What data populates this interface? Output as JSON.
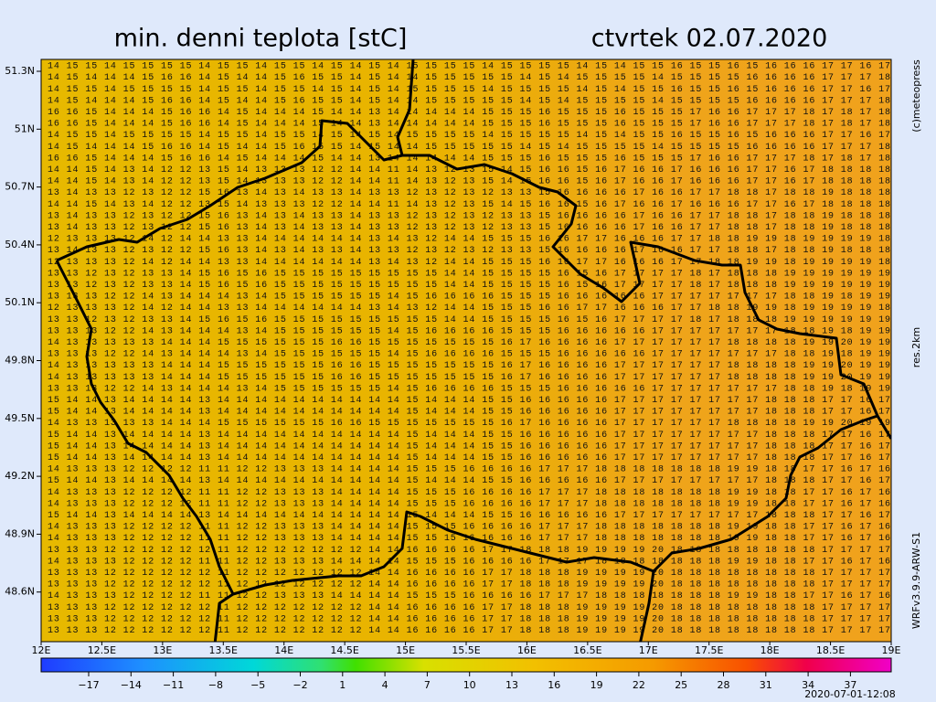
{
  "header": {
    "title": "min. denni teplota [stC]",
    "date": "ctvrtek 02.07.2020"
  },
  "side": {
    "copyright": "(c)meteopress",
    "resolution": "res.2km",
    "model": "WRFv3.9.9-ARW-S1"
  },
  "footer": {
    "timestamp": "2020-07-01-12:08"
  },
  "map": {
    "lat_labels": [
      "51.3N",
      "51N",
      "50.7N",
      "50.4N",
      "50.1N",
      "49.8N",
      "49.5N",
      "49.2N",
      "48.9N",
      "48.6N"
    ],
    "lon_labels": [
      "12E",
      "12.5E",
      "13E",
      "13.5E",
      "14E",
      "14.5E",
      "15E",
      "15.5E",
      "16E",
      "16.5E",
      "17E",
      "17.5E",
      "18E",
      "18.5E",
      "19E"
    ],
    "grid_rows": [
      "14 15 15 14 15 15 15 15 14 15 15 14 15 15 14 15 14 15 14 15 15 15 15 14 15 15 15 15 14 15 14 15 15 16 15 15 16 15 16 16 16 17 17 16 17",
      "14 15 14 14 14 15 16 16 14 15 14 14 15 16 15 15 14 15 14 14 15 15 15 15 15 14 15 14 15 15 15 15 14 15 15 15 15 16 16 16 16 17 17 17 18",
      "14 15 15 14 15 15 15 15 14 15 15 14 15 15 14 15 14 15 14 15 15 15 15 14 15 15 15 15 14 15 14 15 15 16 15 15 16 15 16 16 16 17 17 16 17",
      "14 15 14 14 14 15 16 16 14 15 14 14 15 16 15 15 14 15 14 14 15 15 15 15 15 14 15 14 15 15 15 15 14 15 15 15 15 16 16 16 16 17 17 17 18",
      "16 16 15 14 14 14 15 16 16 14 15 14 14 14 15 14 14 13 14 14 14 14 14 15 15 15 16 15 15 15 16 15 15 15 17 16 16 17 17 17 18 17 18 17 18",
      "16 16 15 14 14 14 15 16 16 14 15 14 14 14 15 14 14 13 14 14 14 14 14 15 15 15 16 15 15 15 16 15 15 15 17 16 16 17 17 17 18 17 18 17 18",
      "14 15 15 14 15 15 15 15 14 15 15 14 15 15 14 15 14 15 14 15 15 15 15 14 15 15 15 15 14 15 14 15 15 16 15 15 16 15 16 16 16 17 17 16 17",
      "14 15 14 14 14 15 16 16 14 15 14 14 15 16 15 15 14 15 14 14 15 15 15 15 15 14 15 14 15 15 15 15 14 15 15 15 15 16 16 16 16 17 17 17 18",
      "16 16 15 14 14 14 15 16 16 14 15 14 14 14 15 14 14 13 14 14 14 14 14 15 15 15 16 15 15 15 16 15 15 15 17 16 16 17 17 17 18 17 18 17 18",
      "14 14 15 14 13 14 12 12 13 15 14 13 13 13 12 12 14 14 11 14 13 12 13 15 14 15 16 16 15 16 17 16 16 17 16 16 16 17 17 16 17 18 18 18 18",
      "14 14 15 14 13 14 12 12 13 15 14 13 13 13 12 12 14 14 11 14 13 12 13 15 14 15 16 16 15 16 17 16 16 17 16 16 16 17 17 16 17 18 18 18 18",
      "13 14 13 13 12 13 12 12 15 16 13 14 13 14 13 13 14 13 13 12 13 12 13 12 13 13 15 16 16 16 16 17 16 16 17 17 18 18 17 18 18 19 18 18 18",
      "14 14 15 14 13 14 12 12 13 15 14 13 13 13 12 12 14 14 11 14 13 12 13 15 14 15 16 16 15 16 17 16 16 17 16 16 16 17 17 16 17 18 18 18 18",
      "13 14 13 13 12 13 12 12 15 16 13 14 13 14 13 13 14 13 13 12 13 12 13 12 13 13 15 16 16 16 16 17 16 16 17 17 18 18 17 18 18 19 18 18 18",
      "13 14 13 13 12 13 12 12 15 16 13 14 13 14 13 13 14 13 13 12 13 12 13 12 13 13 15 16 16 16 16 17 16 16 17 17 18 18 17 18 18 19 18 18 18",
      "12 13 13 13 12 14 12 14 14 13 13 14 14 14 14 14 14 13 14 13 12 14 14 15 15 15 16 16 17 17 16 16 16 17 17 18 18 19 19 18 19 19 19 19 18",
      "13 14 13 13 12 13 12 12 15 16 13 14 13 14 13 13 14 13 13 12 13 12 13 12 13 13 15 16 16 16 16 17 16 16 17 17 18 18 17 18 18 19 18 18 18",
      "12 13 13 13 12 14 12 14 14 13 13 14 14 14 14 14 14 13 14 13 12 14 14 15 15 15 16 16 17 17 16 16 16 17 17 18 18 19 19 18 19 19 19 19 18",
      "13 13 12 13 12 13 13 14 15 16 15 16 15 15 15 15 15 15 15 15 15 14 14 15 15 15 15 16 15 16 17 17 17 17 18 17 18 18 18 19 19 19 19 19 19",
      "13 13 12 13 12 13 13 14 15 16 15 16 15 15 15 15 15 15 15 15 15 14 14 15 15 15 15 16 15 16 17 17 17 17 18 17 18 18 18 19 19 19 19 19 19",
      "13 13 13 12 12 14 13 14 14 14 13 14 15 15 15 15 15 15 14 15 16 16 16 16 15 15 15 16 16 16 16 16 17 17 17 17 17 17 17 18 18 19 18 19 19",
      "12 13 13 13 12 14 12 14 14 13 13 14 14 14 14 14 14 13 14 13 12 14 14 15 15 15 16 16 17 17 16 16 16 17 17 18 18 19 19 18 19 19 19 19 18",
      "13 13 12 13 12 13 13 14 15 16 15 16 15 15 15 15 15 15 15 15 15 14 14 15 15 15 15 16 15 16 17 17 17 17 18 17 18 18 18 19 19 19 19 19 19",
      "13 13 13 12 12 14 13 14 14 14 13 14 15 15 15 15 15 15 14 15 16 16 16 16 15 15 15 16 16 16 16 16 17 17 17 17 17 17 17 18 18 19 18 19 19",
      "14 13 13 13 13 13 14 14 14 15 15 15 15 15 15 16 16 15 15 15 15 15 15 15 16 17 16 16 16 16 17 17 17 17 17 17 18 18 18 18 19 19 20 19 19",
      "13 13 13 12 12 14 13 14 14 14 13 14 15 15 15 15 15 15 14 15 16 16 16 16 15 15 15 16 16 16 16 16 17 17 17 17 17 17 17 18 18 19 18 19 19",
      "14 13 13 13 13 13 14 14 14 15 15 15 15 15 15 16 16 15 15 15 15 15 15 15 16 17 16 16 16 16 17 17 17 17 17 17 18 18 18 18 19 19 20 19 19",
      "14 13 13 13 13 13 14 14 14 15 15 15 15 15 15 16 16 15 15 15 15 15 15 15 16 17 16 16 16 16 17 17 17 17 17 17 18 18 18 18 19 19 20 19 19",
      "13 13 13 12 12 14 13 14 14 14 13 14 15 15 15 15 15 15 14 15 16 16 16 16 15 15 15 16 16 16 16 16 17 17 17 17 17 17 17 18 18 19 18 19 19",
      "15 14 14 13 14 14 14 14 13 14 14 14 14 14 14 14 14 14 14 15 14 14 14 15 15 16 16 16 16 16 17 17 17 17 17 17 17 17 18 18 18 17 17 16 17",
      "15 14 14 13 14 14 14 14 13 14 14 14 14 14 14 14 14 14 14 15 14 14 14 15 15 16 16 16 16 16 17 17 17 17 17 17 17 17 18 18 18 17 17 16 17",
      "14 13 13 13 13 13 14 14 14 15 15 15 15 15 15 16 16 15 15 15 15 15 15 15 16 17 16 16 16 16 17 17 17 17 17 17 18 18 18 18 19 19 20 19 19",
      "15 14 14 13 14 14 14 14 13 14 14 14 14 14 14 14 14 14 14 15 14 14 14 15 15 16 16 16 16 16 17 17 17 17 17 17 17 17 18 18 18 17 17 16 17",
      "15 14 14 13 14 14 14 14 13 14 14 14 14 14 14 14 14 14 14 15 14 14 14 15 15 16 16 16 16 16 17 17 17 17 17 17 17 17 18 18 18 17 17 16 17",
      "15 14 14 13 14 14 14 14 13 14 14 14 14 14 14 14 14 14 14 15 14 14 14 15 15 16 16 16 16 16 17 17 17 17 17 17 17 17 18 18 18 17 17 16 17",
      "14 13 13 13 12 12 12 12 11 11 12 12 13 13 13 14 14 14 14 15 15 15 16 16 16 16 17 17 17 18 18 18 18 18 18 18 19 19 18 18 17 17 16 17 16",
      "15 14 14 13 14 14 14 14 13 14 14 14 14 14 14 14 14 14 14 15 14 14 14 15 15 16 16 16 16 16 17 17 17 17 17 17 17 17 18 18 18 17 17 16 17",
      "14 13 13 13 12 12 12 12 11 11 12 12 13 13 13 14 14 14 14 15 15 15 16 16 16 16 17 17 17 18 18 18 18 18 18 18 19 19 18 18 17 17 16 17 16",
      "14 13 13 13 12 12 12 12 11 11 12 12 13 13 13 14 14 14 14 15 15 15 16 16 16 16 17 17 17 18 18 18 18 18 18 18 19 19 18 18 17 17 16 17 16",
      "15 14 14 13 14 14 14 14 13 14 14 14 14 14 14 14 14 14 14 15 14 14 14 15 15 16 16 16 16 16 17 17 17 17 17 17 17 17 18 18 18 17 17 16 17",
      "14 13 13 13 12 12 12 12 11 11 12 12 13 13 13 14 14 14 14 15 15 15 16 16 16 16 17 17 17 18 18 18 18 18 18 18 19 19 18 18 17 17 16 17 16",
      "14 13 13 13 12 12 12 12 11 11 12 12 13 13 13 14 14 14 14 15 15 15 16 16 16 16 17 17 17 18 18 18 18 18 18 18 19 19 18 18 17 17 16 17 16",
      "13 13 13 12 12 12 12 12 12 11 12 12 12 12 12 12 12 14 14 16 16 16 16 17 17 18 18 18 19 19 19 19 20 18 18 18 18 18 18 18 18 17 17 17 17",
      "14 13 13 13 12 12 12 12 11 11 12 12 13 13 13 14 14 14 14 15 15 15 16 16 16 16 17 17 17 18 18 18 18 18 18 18 19 19 18 18 17 17 16 17 16",
      "13 13 13 12 12 12 12 12 12 11 12 12 12 12 12 12 12 14 14 16 16 16 16 17 17 18 18 18 19 19 19 19 20 18 18 18 18 18 18 18 18 17 17 17 17",
      "13 13 13 12 12 12 12 12 12 11 12 12 12 12 12 12 12 14 14 16 16 16 16 17 17 18 18 18 19 19 19 19 20 18 18 18 18 18 18 18 18 17 17 17 17",
      "14 13 13 13 12 12 12 12 11 11 12 12 13 13 13 14 14 14 14 15 15 15 16 16 16 16 17 17 17 18 18 18 18 18 18 18 19 19 18 18 17 17 16 17 16",
      "13 13 13 12 12 12 12 12 12 11 12 12 12 12 12 12 12 14 14 16 16 16 16 17 17 18 18 18 19 19 19 19 20 18 18 18 18 18 18 18 18 17 17 17 17",
      "13 13 13 12 12 12 12 12 12 11 12 12 12 12 12 12 12 14 14 16 16 16 16 17 17 18 18 18 19 19 19 19 20 18 18 18 18 18 18 18 18 17 17 17 17",
      "13 13 13 12 12 12 12 12 12 11 12 12 12 12 12 12 12 14 14 16 16 16 16 17 17 18 18 18 19 19 19 19 20 18 18 18 18 18 18 18 18 17 17 17 17"
    ]
  },
  "colorbar": {
    "labels": [
      "−17",
      "−14",
      "−11",
      "−8",
      "−5",
      "−2",
      "1",
      "4",
      "7",
      "10",
      "13",
      "16",
      "19",
      "22",
      "25",
      "28",
      "31",
      "34",
      "37"
    ]
  }
}
